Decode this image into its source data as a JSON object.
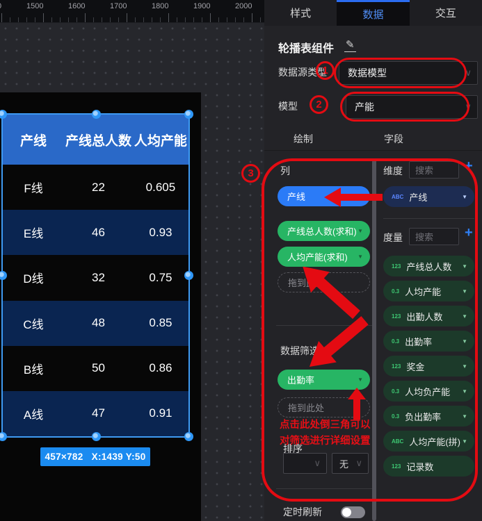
{
  "ruler": {
    "labels": [
      "0",
      "1500",
      "1600",
      "1700",
      "1800",
      "1900",
      "2000"
    ]
  },
  "tabs": {
    "style": "样式",
    "data": "数据",
    "interact": "交互"
  },
  "panel": {
    "title": "轮播表组件",
    "edit_icon": "✎",
    "datasource_label": "数据源类型",
    "datasource_value": "数据模型",
    "model_label": "模型",
    "model_value": "产能",
    "subtab_draw": "绘制",
    "subtab_fields": "字段",
    "columns_label": "列",
    "filter_label": "数据筛选",
    "sort_label": "排序",
    "sort_value_none": "无",
    "refresh_label": "定时刷新",
    "drop_placeholder": "拖到此处",
    "note_line1": "点击此处倒三角可以",
    "note_line2": "对筛选进行详细设置",
    "dimension_label": "维度",
    "measure_label": "度量",
    "search_placeholder": "搜索",
    "column_pills": [
      {
        "label": "产线",
        "color": "blue",
        "arrow": false
      },
      {
        "label": "产线总人数(求和)",
        "color": "green",
        "arrow": true
      },
      {
        "label": "人均产能(求和)",
        "color": "green",
        "arrow": true
      }
    ],
    "filter_pills": [
      {
        "label": "出勤率",
        "color": "green",
        "arrow": true
      }
    ],
    "dimension_fields": [
      {
        "prefix": "ABC",
        "label": "产线",
        "arrow": true
      }
    ],
    "measure_fields": [
      {
        "prefix": "123",
        "label": "产线总人数",
        "arrow": true
      },
      {
        "prefix": "0.3",
        "label": "人均产能",
        "arrow": true
      },
      {
        "prefix": "123",
        "label": "出勤人数",
        "arrow": true
      },
      {
        "prefix": "0.3",
        "label": "出勤率",
        "arrow": true
      },
      {
        "prefix": "123",
        "label": "奖金",
        "arrow": true
      },
      {
        "prefix": "0.3",
        "label": "人均负产能",
        "arrow": true
      },
      {
        "prefix": "0.3",
        "label": "负出勤率",
        "arrow": true
      },
      {
        "prefix": "ABC",
        "label": "人均产能(拼)",
        "arrow": true
      },
      {
        "prefix": "123",
        "label": "记录数",
        "arrow": false
      }
    ]
  },
  "table": {
    "headers": [
      "产线",
      "产线总人数",
      "人均产能"
    ],
    "rows": [
      [
        "F线",
        "22",
        "0.605"
      ],
      [
        "E线",
        "46",
        "0.93"
      ],
      [
        "D线",
        "32",
        "0.75"
      ],
      [
        "C线",
        "48",
        "0.85"
      ],
      [
        "B线",
        "50",
        "0.86"
      ],
      [
        "A线",
        "47",
        "0.91"
      ]
    ]
  },
  "badge": {
    "text": "457×782   X:1439 Y:50"
  },
  "annotations": {
    "step1": "1",
    "step2": "2",
    "step3": "3"
  },
  "colors": {
    "accent_blue": "#2b7bf7",
    "accent_green": "#27b564",
    "annotation_red": "#e40b12",
    "selection_blue": "#3e9af2",
    "table_header_blue": "#2a69c8",
    "table_row_navy": "#0a2551"
  }
}
